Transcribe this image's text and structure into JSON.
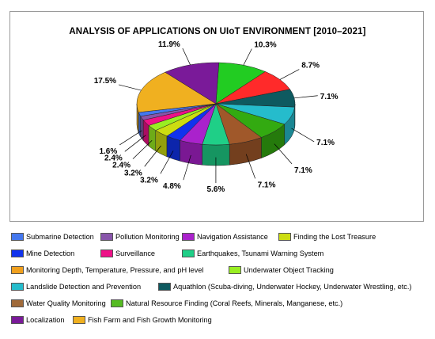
{
  "chart_data": {
    "type": "pie",
    "title": "ANALYSIS OF APPLICATIONS ON UIoT ENVIRONMENT [2010–2021]",
    "slices": [
      {
        "label": "Natural Resource Finding (Coral Reefs, Minerals, Manganese, etc.)",
        "value": 10.3,
        "display": "10.3%",
        "color": "#22cc22"
      },
      {
        "label": "Surveillance",
        "value": 8.7,
        "display": "8.7%",
        "color": "#ff2a2a"
      },
      {
        "label": "Aquathlon (Scuba-diving, Underwater Hockey, Underwater Wrestling, etc.)",
        "value": 7.1,
        "display": "7.1%",
        "color": "#0e5a60"
      },
      {
        "label": "Landslide Detection and Prevention",
        "value": 7.1,
        "display": "7.1%",
        "color": "#25bccc"
      },
      {
        "label": "Water Quality Monitoring",
        "value": 7.1,
        "display": "7.1%",
        "color": "#33aa11"
      },
      {
        "label": "Water Quality Monitoring",
        "value": 7.1,
        "display": "7.1%",
        "color": "#a0582a"
      },
      {
        "label": "Earthquakes, Tsunami Warning System",
        "value": 5.6,
        "display": "5.6%",
        "color": "#1fcf87"
      },
      {
        "label": "Navigation Assistance",
        "value": 4.8,
        "display": "4.8%",
        "color": "#aa22cc"
      },
      {
        "label": "Mine Detection",
        "value": 3.2,
        "display": "3.2%",
        "color": "#1133ee"
      },
      {
        "label": "Finding the Lost Treasure",
        "value": 3.2,
        "display": "3.2%",
        "color": "#ccdd11"
      },
      {
        "label": "Underwater Object Tracking",
        "value": 2.4,
        "display": "2.4%",
        "color": "#99ee22"
      },
      {
        "label": "Surveillance",
        "value": 2.4,
        "display": "2.4%",
        "color": "#ee1188"
      },
      {
        "label": "Pollution Monitoring",
        "value": 1.6,
        "display": "1.6%",
        "color": "#8855aa"
      },
      {
        "label": "Submarine Detection",
        "value": 1.6,
        "display": "",
        "color": "#4477ee"
      },
      {
        "label": "Fish Farm and Fish Growth Monitoring",
        "value": 17.5,
        "display": "17.5%",
        "color": "#f0b020"
      },
      {
        "label": "Localization",
        "value": 11.9,
        "display": "11.9%",
        "color": "#7a1a99"
      }
    ],
    "legend": [
      {
        "label": "Submarine Detection",
        "color": "#4477ee"
      },
      {
        "label": "Pollution Monitoring",
        "color": "#8855aa"
      },
      {
        "label": "Navigation Assistance",
        "color": "#aa22cc"
      },
      {
        "label": "Finding the Lost Treasure",
        "color": "#ccdd11"
      },
      {
        "label": "Mine Detection",
        "color": "#1133ee"
      },
      {
        "label": "Surveillance",
        "color": "#ee1188"
      },
      {
        "label": "Earthquakes, Tsunami Warning System",
        "color": "#1fcf87"
      },
      {
        "label": "Monitoring Depth, Temperature, Pressure, and pH level",
        "color": "#f0a01e"
      },
      {
        "label": "Underwater Object Tracking",
        "color": "#99ee22"
      },
      {
        "label": "Landslide Detection and Prevention",
        "color": "#25bccc"
      },
      {
        "label": "Aquathlon (Scuba-diving, Underwater Hockey, Underwater Wrestling, etc.)",
        "color": "#0e5a60"
      },
      {
        "label": "Water Quality Monitoring",
        "color": "#a06a3a"
      },
      {
        "label": "Natural Resource Finding (Coral Reefs, Minerals, Manganese, etc.)",
        "color": "#55bb22"
      },
      {
        "label": "Localization",
        "color": "#7a1a99"
      },
      {
        "label": "Fish Farm and Fish Growth Monitoring",
        "color": "#f0b020"
      }
    ],
    "legend_placement": "bottom"
  }
}
